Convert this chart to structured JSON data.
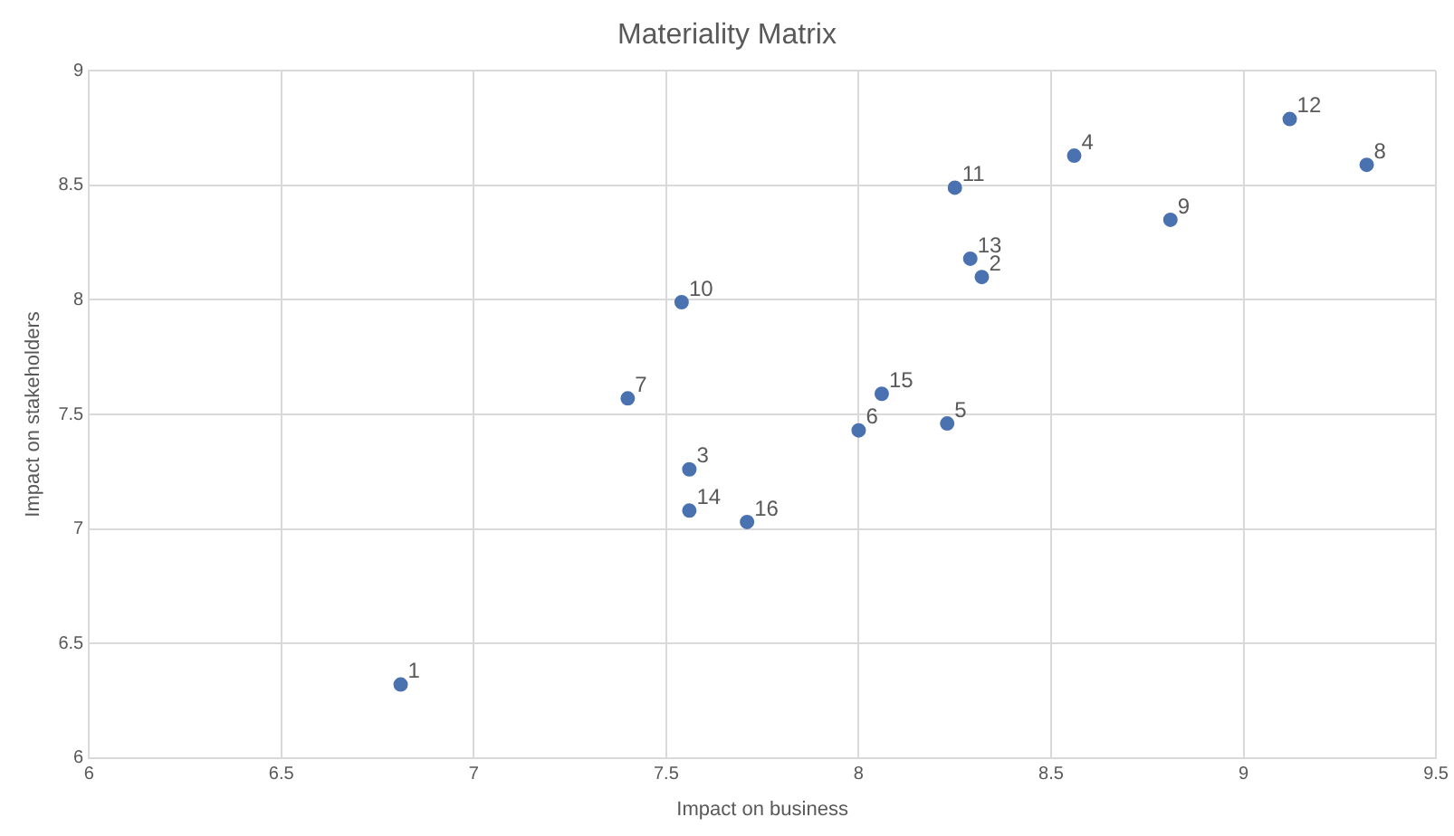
{
  "chart_data": {
    "type": "scatter",
    "title": "Materiality Matrix",
    "xlabel": "Impact on business",
    "ylabel": "Impact on stakeholders",
    "x": [
      6.81,
      8.32,
      7.56,
      8.56,
      8.23,
      8.0,
      7.4,
      9.32,
      8.81,
      7.54,
      8.25,
      9.12,
      8.29,
      7.56,
      8.06,
      7.71
    ],
    "values": [
      6.32,
      8.1,
      7.26,
      8.63,
      7.46,
      7.43,
      7.57,
      8.59,
      8.35,
      7.99,
      8.49,
      8.79,
      8.18,
      7.08,
      7.59,
      7.03
    ],
    "color": "#4a72b0",
    "marker": "circle",
    "xlim": [
      6,
      9.5
    ],
    "xticks": [
      6,
      6.5,
      7,
      7.5,
      8,
      8.5,
      9,
      9.5
    ],
    "ylim": [
      6,
      9
    ],
    "yticks": [
      6,
      6.5,
      7,
      7.5,
      8,
      8.5,
      9
    ],
    "grid": true,
    "legend": false,
    "annotations": [
      {
        "text": "1",
        "x": 6.81,
        "y": 6.32
      },
      {
        "text": "2",
        "x": 8.32,
        "y": 8.1
      },
      {
        "text": "3",
        "x": 7.56,
        "y": 7.26
      },
      {
        "text": "4",
        "x": 8.56,
        "y": 8.63
      },
      {
        "text": "5",
        "x": 8.23,
        "y": 7.46
      },
      {
        "text": "6",
        "x": 8.0,
        "y": 7.43
      },
      {
        "text": "7",
        "x": 7.4,
        "y": 7.57
      },
      {
        "text": "8",
        "x": 9.32,
        "y": 8.59
      },
      {
        "text": "9",
        "x": 8.81,
        "y": 8.35
      },
      {
        "text": "10",
        "x": 7.54,
        "y": 7.99
      },
      {
        "text": "11",
        "x": 8.25,
        "y": 8.49
      },
      {
        "text": "12",
        "x": 9.12,
        "y": 8.79
      },
      {
        "text": "13",
        "x": 8.29,
        "y": 8.18
      },
      {
        "text": "14",
        "x": 7.56,
        "y": 7.08
      },
      {
        "text": "15",
        "x": 8.06,
        "y": 7.59
      },
      {
        "text": "16",
        "x": 7.71,
        "y": 7.03
      }
    ]
  }
}
